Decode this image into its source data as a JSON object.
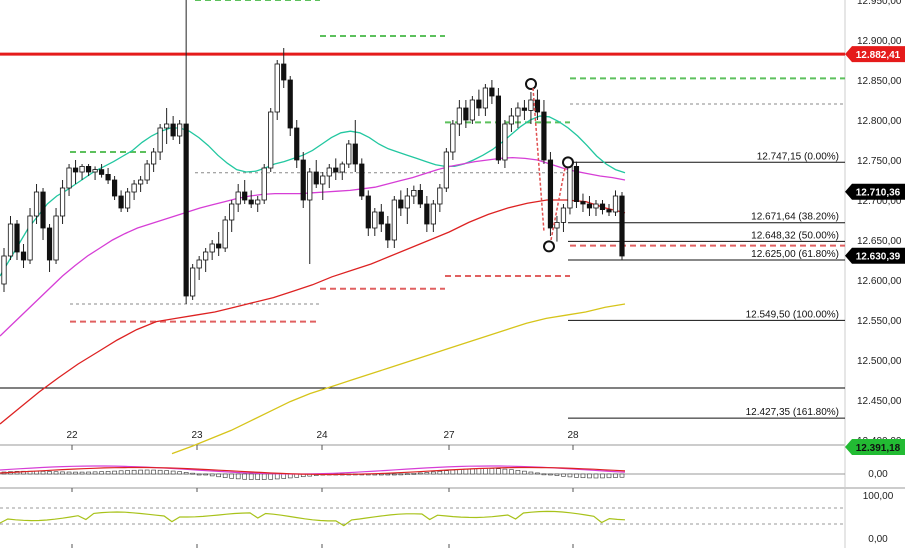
{
  "chart_data": {
    "type": "candlestick",
    "y_axis": {
      "ylim": [
        12380,
        12990
      ],
      "ticks": [
        "12.400,00",
        "12.450,00",
        "12.500,00",
        "12.550,00",
        "12.600,00",
        "12.650,00",
        "12.700,00",
        "12.750,00",
        "12.800,00",
        "12.850,00",
        "12.900,00",
        "12.950,00"
      ]
    },
    "x_axis": {
      "ticks": [
        "22",
        "23",
        "24",
        "27",
        "28"
      ]
    },
    "price_tags": [
      {
        "label": "12.882,41",
        "value": 12882.41,
        "color": "#e51b1b"
      },
      {
        "label": "12.710,36",
        "value": 12710.36,
        "color": "#000000"
      },
      {
        "label": "12.630,39",
        "value": 12630.39,
        "color": "#000000"
      },
      {
        "label": "12.391,18",
        "value": 12391.18,
        "color": "#22bb33"
      }
    ],
    "fibonacci": [
      {
        "label": "12.747,15 (0.00%)",
        "value": 12747.15
      },
      {
        "label": "12.671,64 (38.20%)",
        "value": 12671.64
      },
      {
        "label": "12.648,32 (50.00%)",
        "value": 12648.32
      },
      {
        "label": "12.625,00 (61.80%)",
        "value": 12625.0
      },
      {
        "label": "12.549,50 (100.00%)",
        "value": 12549.5
      },
      {
        "label": "12.427,35 (161.80%)",
        "value": 12427.35
      }
    ],
    "horizontal_lines": [
      {
        "value": 12882.41,
        "color": "#e51b1b",
        "style": "solid"
      },
      {
        "value": 12465,
        "color": "#000000",
        "style": "solid"
      }
    ],
    "candles": [
      [
        12595,
        12640,
        12585,
        12630
      ],
      [
        12630,
        12680,
        12625,
        12670
      ],
      [
        12670,
        12675,
        12625,
        12635
      ],
      [
        12635,
        12645,
        12615,
        12625
      ],
      [
        12625,
        12690,
        12620,
        12680
      ],
      [
        12680,
        12720,
        12670,
        12710
      ],
      [
        12710,
        12715,
        12650,
        12665
      ],
      [
        12665,
        12670,
        12610,
        12625
      ],
      [
        12625,
        12690,
        12620,
        12680
      ],
      [
        12680,
        12725,
        12670,
        12715
      ],
      [
        12715,
        12745,
        12705,
        12740
      ],
      [
        12740,
        12750,
        12720,
        12735
      ],
      [
        12735,
        12745,
        12725,
        12742
      ],
      [
        12742,
        12745,
        12730,
        12735
      ],
      [
        12735,
        12742,
        12725,
        12738
      ],
      [
        12738,
        12745,
        12728,
        12732
      ],
      [
        12732,
        12740,
        12720,
        12725
      ],
      [
        12725,
        12730,
        12700,
        12705
      ],
      [
        12705,
        12712,
        12685,
        12690
      ],
      [
        12690,
        12715,
        12685,
        12710
      ],
      [
        12710,
        12725,
        12700,
        12720
      ],
      [
        12720,
        12730,
        12710,
        12725
      ],
      [
        12725,
        12750,
        12720,
        12745
      ],
      [
        12745,
        12765,
        12735,
        12760
      ],
      [
        12760,
        12795,
        12750,
        12790
      ],
      [
        12790,
        12815,
        12770,
        12795
      ],
      [
        12795,
        12805,
        12775,
        12780
      ],
      [
        12780,
        12800,
        12770,
        12795
      ],
      [
        12795,
        12990,
        12570,
        12580
      ],
      [
        12580,
        12620,
        12575,
        12615
      ],
      [
        12615,
        12630,
        12600,
        12625
      ],
      [
        12625,
        12640,
        12610,
        12635
      ],
      [
        12635,
        12650,
        12625,
        12645
      ],
      [
        12645,
        12660,
        12630,
        12640
      ],
      [
        12640,
        12680,
        12635,
        12675
      ],
      [
        12675,
        12700,
        12660,
        12695
      ],
      [
        12695,
        12720,
        12685,
        12710
      ],
      [
        12710,
        12725,
        12695,
        12700
      ],
      [
        12700,
        12712,
        12690,
        12695
      ],
      [
        12695,
        12705,
        12685,
        12700
      ],
      [
        12700,
        12745,
        12695,
        12740
      ],
      [
        12740,
        12815,
        12735,
        12810
      ],
      [
        12810,
        12875,
        12800,
        12870
      ],
      [
        12870,
        12890,
        12840,
        12850
      ],
      [
        12850,
        12855,
        12780,
        12790
      ],
      [
        12790,
        12800,
        12740,
        12750
      ],
      [
        12750,
        12760,
        12690,
        12700
      ],
      [
        12700,
        12740,
        12620,
        12735
      ],
      [
        12735,
        12750,
        12715,
        12720
      ],
      [
        12720,
        12735,
        12700,
        12730
      ],
      [
        12730,
        12745,
        12715,
        12740
      ],
      [
        12740,
        12752,
        12725,
        12735
      ],
      [
        12735,
        12748,
        12725,
        12745
      ],
      [
        12745,
        12775,
        12740,
        12770
      ],
      [
        12770,
        12800,
        12735,
        12745
      ],
      [
        12745,
        12752,
        12700,
        12705
      ],
      [
        12705,
        12712,
        12655,
        12665
      ],
      [
        12665,
        12690,
        12655,
        12685
      ],
      [
        12685,
        12695,
        12660,
        12670
      ],
      [
        12670,
        12680,
        12640,
        12650
      ],
      [
        12650,
        12705,
        12640,
        12700
      ],
      [
        12700,
        12712,
        12680,
        12690
      ],
      [
        12690,
        12715,
        12670,
        12705
      ],
      [
        12705,
        12718,
        12695,
        12712
      ],
      [
        12712,
        12720,
        12690,
        12695
      ],
      [
        12695,
        12705,
        12660,
        12670
      ],
      [
        12670,
        12700,
        12660,
        12695
      ],
      [
        12695,
        12720,
        12685,
        12715
      ],
      [
        12715,
        12765,
        12710,
        12760
      ],
      [
        12760,
        12800,
        12750,
        12795
      ],
      [
        12795,
        12825,
        12780,
        12815
      ],
      [
        12815,
        12825,
        12790,
        12800
      ],
      [
        12800,
        12830,
        12795,
        12825
      ],
      [
        12825,
        12838,
        12805,
        12815
      ],
      [
        12815,
        12845,
        12805,
        12840
      ],
      [
        12840,
        12850,
        12820,
        12830
      ],
      [
        12830,
        12840,
        12745,
        12750
      ],
      [
        12750,
        12800,
        12740,
        12795
      ],
      [
        12795,
        12815,
        12785,
        12805
      ],
      [
        12805,
        12822,
        12790,
        12815
      ],
      [
        12815,
        12825,
        12800,
        12812
      ],
      [
        12812,
        12835,
        12795,
        12825
      ],
      [
        12825,
        12838,
        12800,
        12810
      ],
      [
        12810,
        12825,
        12745,
        12750
      ],
      [
        12750,
        12760,
        12655,
        12665
      ],
      [
        12665,
        12680,
        12648,
        12672
      ],
      [
        12672,
        12695,
        12660,
        12690
      ],
      [
        12690,
        12748,
        12682,
        12742
      ],
      [
        12742,
        12748,
        12690,
        12698
      ],
      [
        12698,
        12708,
        12685,
        12695
      ],
      [
        12695,
        12705,
        12680,
        12690
      ],
      [
        12690,
        12700,
        12680,
        12695
      ],
      [
        12695,
        12700,
        12682,
        12688
      ],
      [
        12688,
        12695,
        12680,
        12685
      ],
      [
        12685,
        12712,
        12680,
        12705
      ],
      [
        12705,
        12710,
        12625,
        12630
      ]
    ],
    "indicators": [
      {
        "color": "#22c7a0",
        "values": [
          12605,
          12625,
          12645,
          12665,
          12680,
          12695,
          12705,
          12712,
          12720,
          12728,
          12736,
          12742,
          12748,
          12755,
          12762,
          12772,
          12780,
          12786,
          12790,
          12790,
          12786,
          12778,
          12768,
          12756,
          12746,
          12738,
          12735,
          12736,
          12740,
          12745,
          12748,
          12752,
          12756,
          12762,
          12770,
          12778,
          12784,
          12786,
          12784,
          12778,
          12770,
          12764,
          12760,
          12756,
          12752,
          12748,
          12744,
          12742,
          12742,
          12745,
          12750,
          12756,
          12763,
          12772,
          12782,
          12792,
          12800,
          12805,
          12804,
          12798,
          12790,
          12780,
          12768,
          12755,
          12745,
          12738,
          12734
        ]
      },
      {
        "color": "#d63ed6",
        "values": [
          12530,
          12545,
          12560,
          12575,
          12590,
          12605,
          12618,
          12630,
          12640,
          12650,
          12658,
          12665,
          12670,
          12675,
          12680,
          12685,
          12690,
          12694,
          12698,
          12702,
          12705,
          12707,
          12708,
          12708,
          12708,
          12709,
          12710,
          12711,
          12712,
          12714,
          12716,
          12720,
          12724,
          12728,
          12733,
          12738,
          12742,
          12745,
          12748,
          12750,
          12752,
          12753,
          12752,
          12750,
          12745,
          12740,
          12736,
          12733,
          12730,
          12728,
          12725
        ]
      },
      {
        "color": "#dd2222",
        "values": [
          12420,
          12440,
          12460,
          12478,
          12495,
          12510,
          12525,
          12538,
          12548,
          12552,
          12556,
          12560,
          12566,
          12572,
          12578,
          12586,
          12594,
          12604,
          12612,
          12620,
          12630,
          12640,
          12650,
          12660,
          12672,
          12682,
          12690,
          12696,
          12700,
          12700,
          12698,
          12690,
          12684
        ]
      },
      {
        "color": "#d6c41a",
        "values": [
          12383,
          12392,
          12402,
          12412,
          12424,
          12436,
          12448,
          12458,
          12466,
          12474,
          12482,
          12490,
          12498,
          12506,
          12514,
          12522,
          12530,
          12538,
          12546,
          12552,
          12556,
          12560,
          12566,
          12570
        ]
      }
    ],
    "lower_panel_1": {
      "label": "0,00"
    },
    "lower_panel_2": {
      "labels": [
        "100,00",
        "0,00"
      ]
    }
  }
}
